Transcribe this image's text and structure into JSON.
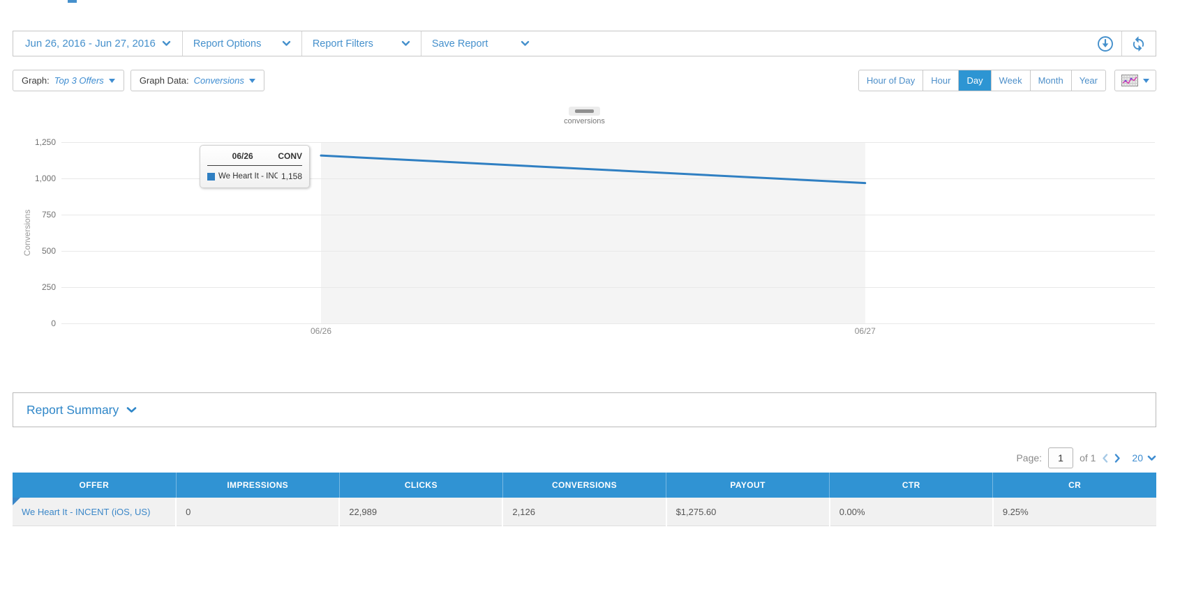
{
  "toolbar": {
    "date_range": "Jun 26, 2016 - Jun 27, 2016",
    "report_options_label": "Report Options",
    "report_filters_label": "Report Filters",
    "save_report_label": "Save Report"
  },
  "graph_controls": {
    "graph_label": "Graph:",
    "graph_value": "Top 3 Offers",
    "graph_data_label": "Graph Data:",
    "graph_data_value": "Conversions",
    "interval_buttons": [
      "Hour of Day",
      "Hour",
      "Day",
      "Week",
      "Month",
      "Year"
    ],
    "active_interval": "Day"
  },
  "chart_data": {
    "type": "line",
    "title": "",
    "legend": [
      "conversions"
    ],
    "legend_position": "top",
    "x": [
      "06/26",
      "06/27"
    ],
    "series": [
      {
        "name": "We Heart It - INCENT (...",
        "values": [
          1158,
          968
        ],
        "color": "#2f7fc2"
      }
    ],
    "xlabel": "",
    "ylabel": "Conversions",
    "ylim": [
      0,
      1250
    ],
    "yticks": [
      0,
      250,
      500,
      750,
      1000,
      1250
    ],
    "grid": true,
    "plot_band_color": "#f4f4f4"
  },
  "tooltip": {
    "date": "06/26",
    "column": "CONV",
    "series_name": "We Heart It - INCENT (...",
    "value": "1,158",
    "swatch_color": "#2f7fc2"
  },
  "report_summary": {
    "title": "Report Summary"
  },
  "pagination": {
    "page_label": "Page:",
    "current_page": "1",
    "of_label": "of 1",
    "page_size": "20"
  },
  "table": {
    "headers": [
      "OFFER",
      "IMPRESSIONS",
      "CLICKS",
      "CONVERSIONS",
      "PAYOUT",
      "CTR",
      "CR"
    ],
    "rows": [
      {
        "offer": "We Heart It - INCENT (iOS, US)",
        "impressions": "0",
        "clicks": "22,989",
        "conversions": "2,126",
        "payout": "$1,275.60",
        "ctr": "0.00%",
        "cr": "9.25%"
      }
    ]
  },
  "colors": {
    "accent_blue": "#4590cc",
    "active_button_blue": "#2d95d3",
    "table_header_blue": "#3093d3",
    "line_blue": "#2f7fc2",
    "row_bg": "#f1f1f1",
    "plot_band": "#f4f4f4",
    "grid_line": "#e8e8e8"
  }
}
